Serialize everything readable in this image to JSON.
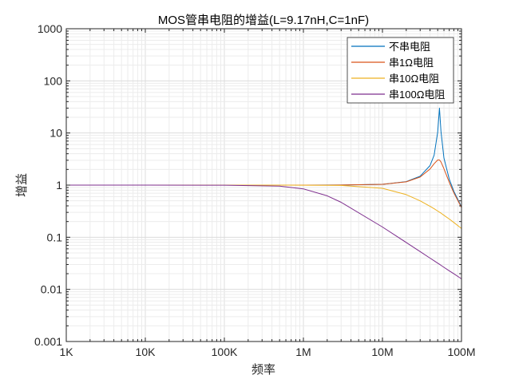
{
  "chart_data": {
    "type": "line",
    "title": "MOS管串电阻的增益(L=9.17nH,C=1nF)",
    "xlabel": "频率",
    "ylabel": "增益",
    "xscale": "log",
    "yscale": "log",
    "xlim": [
      1000,
      100000000
    ],
    "ylim": [
      0.001,
      1000
    ],
    "grid": true,
    "legend_position": "top-right",
    "x_ticks": [
      {
        "value": 1000,
        "label": "1K"
      },
      {
        "value": 10000,
        "label": "10K"
      },
      {
        "value": 100000,
        "label": "100K"
      },
      {
        "value": 1000000,
        "label": "1M"
      },
      {
        "value": 10000000,
        "label": "10M"
      },
      {
        "value": 100000000,
        "label": "100M"
      }
    ],
    "y_ticks": [
      {
        "value": 0.001,
        "label": "0.001"
      },
      {
        "value": 0.01,
        "label": "0.01"
      },
      {
        "value": 0.1,
        "label": "0.1"
      },
      {
        "value": 1,
        "label": "1"
      },
      {
        "value": 10,
        "label": "10"
      },
      {
        "value": 100,
        "label": "100"
      },
      {
        "value": 1000,
        "label": "1000"
      }
    ],
    "x": [
      1000,
      10000,
      100000,
      500000,
      1000000,
      2000000,
      3000000,
      10000000,
      20000000,
      30000000,
      40000000,
      45000000,
      50000000,
      52600000,
      55000000,
      60000000,
      70000000,
      80000000,
      100000000
    ],
    "series": [
      {
        "name": "不串电阻",
        "color": "#0072BD",
        "values": [
          1,
          1,
          1,
          1,
          1,
          1.002,
          1.003,
          1.037,
          1.169,
          1.482,
          2.371,
          3.73,
          10.4,
          30,
          10.7,
          3.32,
          1.297,
          0.762,
          0.383
        ]
      },
      {
        "name": "串1Ω电阻",
        "color": "#D95319",
        "values": [
          1,
          1,
          1,
          1,
          1,
          1.001,
          1.003,
          1.035,
          1.157,
          1.428,
          2.037,
          2.57,
          3.04,
          3.03,
          2.79,
          2.07,
          1.127,
          0.711,
          0.372
        ]
      },
      {
        "name": "串10Ω电阻",
        "color": "#EDB120",
        "values": [
          1,
          1,
          1,
          1,
          0.998,
          0.992,
          0.986,
          0.869,
          0.658,
          0.4995,
          0.392,
          0.352,
          0.318,
          0.3026,
          0.29,
          0.264,
          0.224,
          0.192,
          0.147
        ]
      },
      {
        "name": "串100Ω电阻",
        "color": "#7E2F8E",
        "values": [
          1,
          1,
          0.998,
          0.954,
          0.847,
          0.623,
          0.469,
          0.157,
          0.0794,
          0.053,
          0.0398,
          0.0354,
          0.0318,
          0.0303,
          0.029,
          0.0265,
          0.0227,
          0.0199,
          0.0159
        ]
      }
    ]
  }
}
